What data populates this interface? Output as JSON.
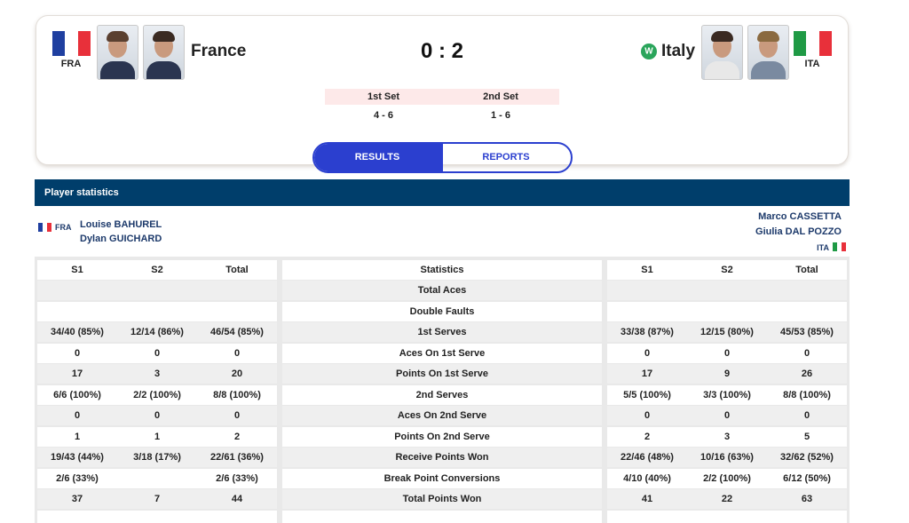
{
  "match": {
    "home": {
      "code": "FRA",
      "name": "France"
    },
    "away": {
      "code": "ITA",
      "name": "Italy",
      "badge": "W"
    },
    "score": "0 : 2",
    "sets": [
      {
        "label": "1st Set",
        "score": "4 - 6"
      },
      {
        "label": "2nd Set",
        "score": "1 - 6"
      }
    ]
  },
  "tabs": [
    "RESULTS",
    "REPORTS"
  ],
  "stats": {
    "title": "Player statistics",
    "home": {
      "code": "FRA",
      "players": [
        "Louise BAHUREL",
        "Dylan GUICHARD"
      ]
    },
    "away": {
      "code": "ITA",
      "players": [
        "Marco CASSETTA",
        "Giulia DAL POZZO"
      ]
    },
    "columns": [
      "S1",
      "S2",
      "Total"
    ],
    "center_header": "Statistics",
    "rows": [
      {
        "label": "Total Aces",
        "home": [
          null,
          null,
          null
        ],
        "away": [
          null,
          null,
          null
        ]
      },
      {
        "label": "Double Faults",
        "home": [
          null,
          null,
          null
        ],
        "away": [
          null,
          null,
          null
        ]
      },
      {
        "label": "1st Serves",
        "home": [
          "34/40 (85%)",
          "12/14 (86%)",
          "46/54 (85%)"
        ],
        "away": [
          "33/38 (87%)",
          "12/15 (80%)",
          "45/53 (85%)"
        ]
      },
      {
        "label": "Aces On 1st Serve",
        "home": [
          "0",
          "0",
          "0"
        ],
        "away": [
          "0",
          "0",
          "0"
        ]
      },
      {
        "label": "Points On 1st Serve",
        "home": [
          "17",
          "3",
          "20"
        ],
        "away": [
          "17",
          "9",
          "26"
        ]
      },
      {
        "label": "2nd Serves",
        "home": [
          "6/6 (100%)",
          "2/2 (100%)",
          "8/8 (100%)"
        ],
        "away": [
          "5/5 (100%)",
          "3/3 (100%)",
          "8/8 (100%)"
        ]
      },
      {
        "label": "Aces On 2nd Serve",
        "home": [
          "0",
          "0",
          "0"
        ],
        "away": [
          "0",
          "0",
          "0"
        ]
      },
      {
        "label": "Points On 2nd Serve",
        "home": [
          "1",
          "1",
          "2"
        ],
        "away": [
          "2",
          "3",
          "5"
        ]
      },
      {
        "label": "Receive Points Won",
        "home": [
          "19/43 (44%)",
          "3/18 (17%)",
          "22/61 (36%)"
        ],
        "away": [
          "22/46 (48%)",
          "10/16 (63%)",
          "32/62 (52%)"
        ]
      },
      {
        "label": "Break Point Conversions",
        "home": [
          "2/6 (33%)",
          null,
          "2/6 (33%)"
        ],
        "away": [
          "4/10 (40%)",
          "2/2 (100%)",
          "6/12 (50%)"
        ]
      },
      {
        "label": "Total Points Won",
        "home": [
          "37",
          "7",
          "44"
        ],
        "away": [
          "41",
          "22",
          "63"
        ]
      }
    ]
  }
}
